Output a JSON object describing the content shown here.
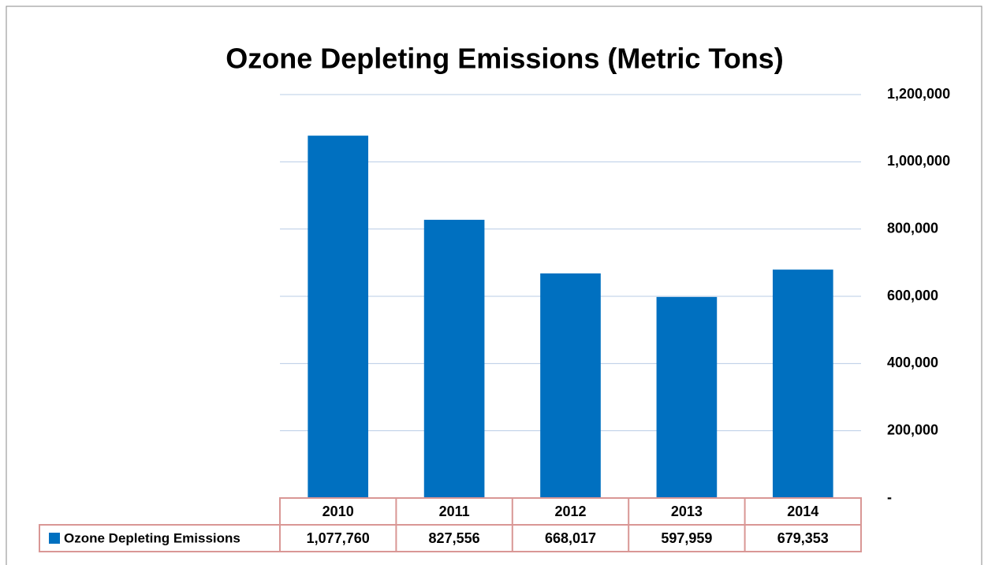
{
  "chart_data": {
    "type": "bar",
    "title": "Ozone Depleting Emissions (Metric Tons)",
    "categories": [
      "2010",
      "2011",
      "2012",
      "2013",
      "2014"
    ],
    "series": [
      {
        "name": "Ozone Depleting Emissions",
        "color": "#0070c0",
        "values": [
          1077760,
          827556,
          668017,
          597959,
          679353
        ],
        "value_labels": [
          "1,077,760",
          "827,556",
          "668,017",
          "597,959",
          "679,353"
        ]
      }
    ],
    "ylim": [
      0,
      1200000
    ],
    "yticks": [
      {
        "value": 0,
        "label": "-"
      },
      {
        "value": 200000,
        "label": "200,000"
      },
      {
        "value": 400000,
        "label": "400,000"
      },
      {
        "value": 600000,
        "label": "600,000"
      },
      {
        "value": 800000,
        "label": "800,000"
      },
      {
        "value": 1000000,
        "label": "1,000,000"
      },
      {
        "value": 1200000,
        "label": "1,200,000"
      }
    ],
    "grid": true,
    "y_axis_side": "right",
    "data_table": true
  }
}
